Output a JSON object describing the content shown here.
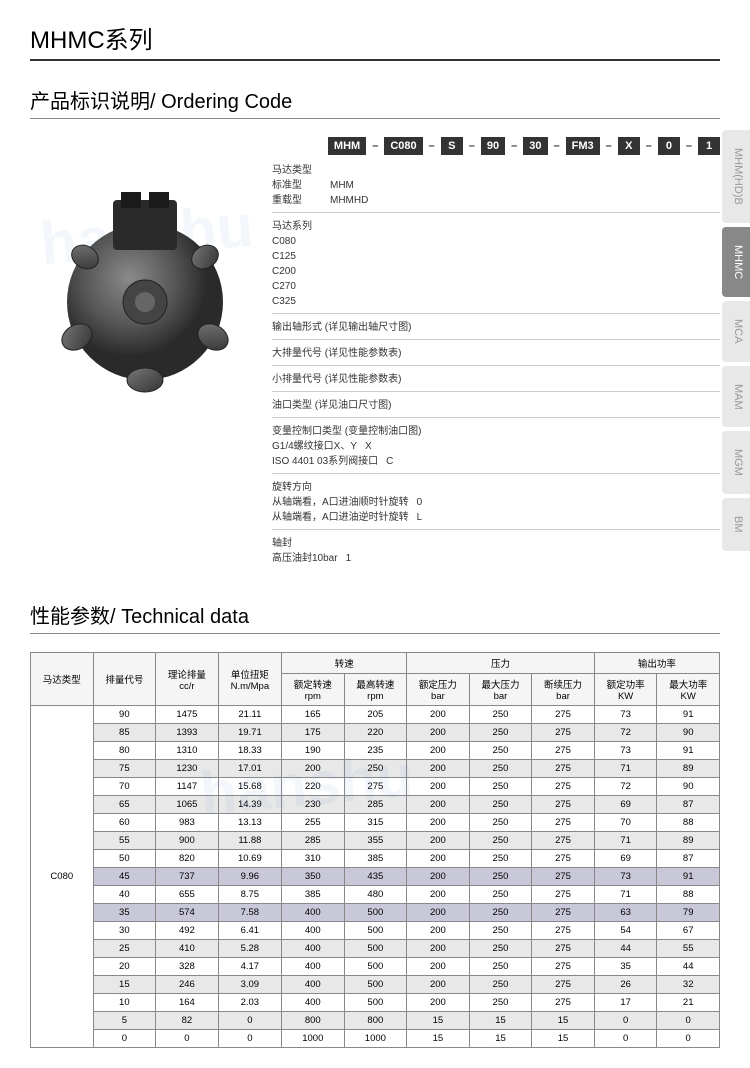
{
  "page_title": "MHMC系列",
  "section1_title": "产品标识说明/ Ordering Code",
  "section2_title": "性能参数/ Technical data",
  "tabs": [
    {
      "label": "MHM(HD)B",
      "active": false
    },
    {
      "label": "MHMC",
      "active": true
    },
    {
      "label": "MCA",
      "active": false
    },
    {
      "label": "MAM",
      "active": false
    },
    {
      "label": "MGM",
      "active": false
    },
    {
      "label": "BM",
      "active": false
    }
  ],
  "code_parts": [
    "MHM",
    "C080",
    "S",
    "90",
    "30",
    "FM3",
    "X",
    "0",
    "1"
  ],
  "spec_groups": [
    {
      "title": "马达类型",
      "lines": [
        [
          "标准型",
          "MHM"
        ],
        [
          "重载型",
          "MHMHD"
        ]
      ]
    },
    {
      "title": "马达系列",
      "lines": [
        [
          "C080",
          ""
        ],
        [
          "C125",
          ""
        ],
        [
          "C200",
          ""
        ],
        [
          "C270",
          ""
        ],
        [
          "C325",
          ""
        ]
      ]
    },
    {
      "title": "输出轴形式 (详见输出轴尺寸图)",
      "lines": []
    },
    {
      "title": "大排量代号 (详见性能参数表)",
      "lines": []
    },
    {
      "title": "小排量代号 (详见性能参数表)",
      "lines": []
    },
    {
      "title": "油口类型 (详见油口尺寸图)",
      "lines": []
    },
    {
      "title": "变量控制口类型 (变量控制油口图)",
      "lines": [
        [
          "G1/4螺纹接口X、Y",
          "X"
        ],
        [
          "ISO 4401 03系列阀接口",
          "C"
        ]
      ]
    },
    {
      "title": "旋转方向",
      "lines": [
        [
          "从轴端看，A口进油顺时针旋转",
          "0"
        ],
        [
          "从轴端看，A口进油逆时针旋转",
          "L"
        ]
      ]
    },
    {
      "title": "轴封",
      "lines": [
        [
          "高压油封10bar",
          "1"
        ]
      ]
    }
  ],
  "table": {
    "group_headers": [
      {
        "label": "马达类型",
        "span": 1,
        "rows": 2
      },
      {
        "label": "排量代号",
        "span": 1,
        "rows": 2
      },
      {
        "label": "理论排量\ncc/r",
        "span": 1,
        "rows": 2
      },
      {
        "label": "单位扭矩\nN.m/Mpa",
        "span": 1,
        "rows": 2
      },
      {
        "label": "转速",
        "span": 2,
        "rows": 1
      },
      {
        "label": "压力",
        "span": 3,
        "rows": 1
      },
      {
        "label": "输出功率",
        "span": 2,
        "rows": 1
      }
    ],
    "sub_headers": [
      "额定转速\nrpm",
      "最高转速\nrpm",
      "额定压力\nbar",
      "最大压力\nbar",
      "断续压力\nbar",
      "额定功率\nKW",
      "最大功率\nKW"
    ],
    "model": "C080",
    "rows": [
      [
        "90",
        "1475",
        "21.11",
        "165",
        "205",
        "200",
        "250",
        "275",
        "73",
        "91"
      ],
      [
        "85",
        "1393",
        "19.71",
        "175",
        "220",
        "200",
        "250",
        "275",
        "72",
        "90"
      ],
      [
        "80",
        "1310",
        "18.33",
        "190",
        "235",
        "200",
        "250",
        "275",
        "73",
        "91"
      ],
      [
        "75",
        "1230",
        "17.01",
        "200",
        "250",
        "200",
        "250",
        "275",
        "71",
        "89"
      ],
      [
        "70",
        "1147",
        "15.68",
        "220",
        "275",
        "200",
        "250",
        "275",
        "72",
        "90"
      ],
      [
        "65",
        "1065",
        "14.39",
        "230",
        "285",
        "200",
        "250",
        "275",
        "69",
        "87"
      ],
      [
        "60",
        "983",
        "13.13",
        "255",
        "315",
        "200",
        "250",
        "275",
        "70",
        "88"
      ],
      [
        "55",
        "900",
        "11.88",
        "285",
        "355",
        "200",
        "250",
        "275",
        "71",
        "89"
      ],
      [
        "50",
        "820",
        "10.69",
        "310",
        "385",
        "200",
        "250",
        "275",
        "69",
        "87"
      ],
      [
        "45",
        "737",
        "9.96",
        "350",
        "435",
        "200",
        "250",
        "275",
        "73",
        "91"
      ],
      [
        "40",
        "655",
        "8.75",
        "385",
        "480",
        "200",
        "250",
        "275",
        "71",
        "88"
      ],
      [
        "35",
        "574",
        "7.58",
        "400",
        "500",
        "200",
        "250",
        "275",
        "63",
        "79"
      ],
      [
        "30",
        "492",
        "6.41",
        "400",
        "500",
        "200",
        "250",
        "275",
        "54",
        "67"
      ],
      [
        "25",
        "410",
        "5.28",
        "400",
        "500",
        "200",
        "250",
        "275",
        "44",
        "55"
      ],
      [
        "20",
        "328",
        "4.17",
        "400",
        "500",
        "200",
        "250",
        "275",
        "35",
        "44"
      ],
      [
        "15",
        "246",
        "3.09",
        "400",
        "500",
        "200",
        "250",
        "275",
        "26",
        "32"
      ],
      [
        "10",
        "164",
        "2.03",
        "400",
        "500",
        "200",
        "250",
        "275",
        "17",
        "21"
      ],
      [
        "5",
        "82",
        "0",
        "800",
        "800",
        "15",
        "15",
        "15",
        "0",
        "0"
      ],
      [
        "0",
        "0",
        "0",
        "1000",
        "1000",
        "15",
        "15",
        "15",
        "0",
        "0"
      ]
    ],
    "highlight_rows": [
      9,
      11
    ]
  },
  "colors": {
    "header_bg": "#333333",
    "border": "#888888",
    "row_even": "#e8e8e8",
    "row_hl": "#c8c8d8",
    "tab_inactive": "#e8e8e8",
    "tab_active": "#888888"
  }
}
